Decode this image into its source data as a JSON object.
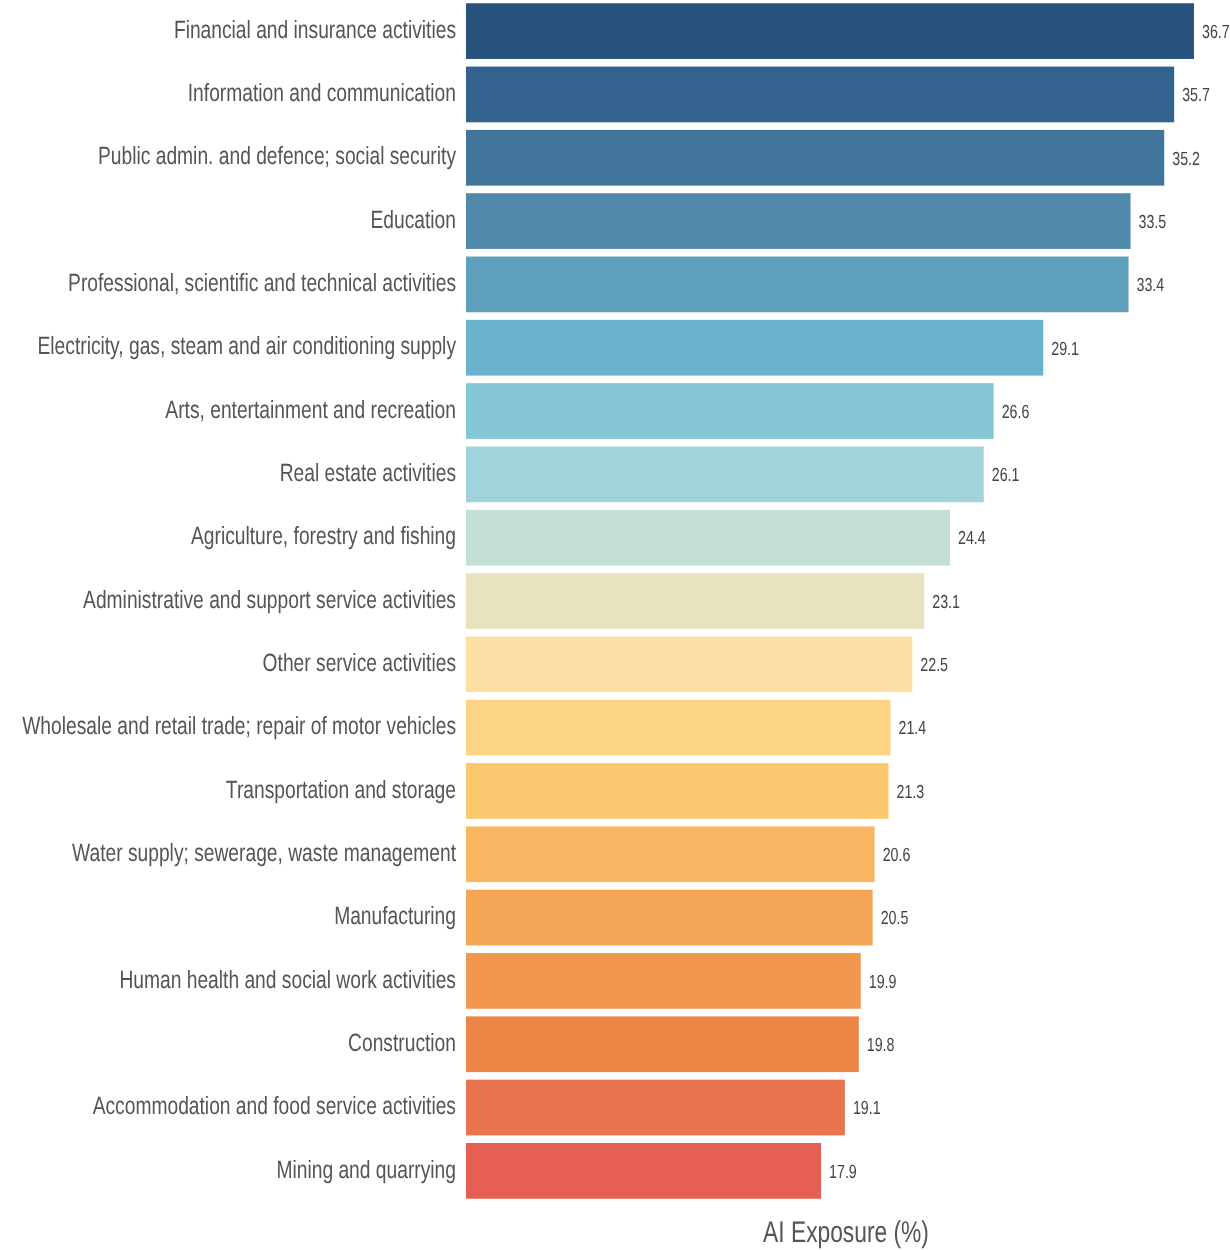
{
  "chart_data": {
    "type": "bar",
    "orientation": "horizontal",
    "xlabel": "AI Exposure (%)",
    "tick_labels": "y",
    "data_labels": true,
    "categories": [
      "Financial and insurance activities",
      "Information and communication",
      "Public admin. and defence; social security",
      "Education",
      "Professional, scientific and technical activities",
      "Electricity, gas, steam and air conditioning supply",
      "Arts, entertainment and recreation",
      "Real estate activities",
      "Agriculture, forestry and fishing",
      "Administrative and support service activities",
      "Other service activities",
      "Wholesale and retail trade; repair of motor vehicles",
      "Transportation and storage",
      "Water supply; sewerage, waste management",
      "Manufacturing",
      "Human health and social work activities",
      "Construction",
      "Accommodation and food service activities",
      "Mining and quarrying"
    ],
    "values": [
      36.7,
      35.7,
      35.2,
      33.5,
      33.4,
      29.1,
      26.6,
      26.1,
      24.4,
      23.1,
      22.5,
      21.4,
      21.3,
      20.6,
      20.5,
      19.9,
      19.8,
      19.1,
      17.9
    ],
    "colors": [
      "#29527c",
      "#33628f",
      "#41759c",
      "#5089aa",
      "#5e9fbc",
      "#6ab3cd",
      "#84c5d6",
      "#a0d3dc",
      "#c3dfd6",
      "#e7e2c0",
      "#fddfa5",
      "#fdd384",
      "#fbc86f",
      "#f8b662",
      "#f5a556",
      "#f1964f",
      "#ed8546",
      "#e8734c",
      "#e55f52"
    ]
  }
}
